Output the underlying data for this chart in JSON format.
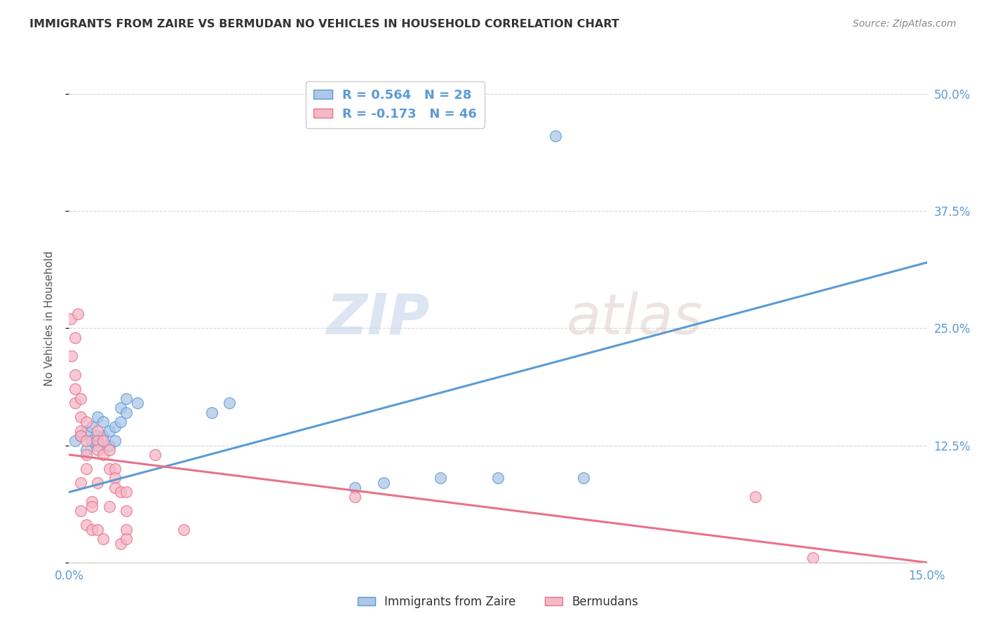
{
  "title": "IMMIGRANTS FROM ZAIRE VS BERMUDAN NO VEHICLES IN HOUSEHOLD CORRELATION CHART",
  "source": "Source: ZipAtlas.com",
  "ylabel_label": "No Vehicles in Household",
  "xmin": 0.0,
  "xmax": 0.15,
  "ymin": 0.0,
  "ymax": 0.52,
  "legend_blue_R": "R = 0.564",
  "legend_blue_N": "N = 28",
  "legend_pink_R": "R = -0.173",
  "legend_pink_N": "N = 46",
  "legend_blue_label": "Immigrants from Zaire",
  "legend_pink_label": "Bermudans",
  "blue_color": "#aec6e8",
  "pink_color": "#f5b8c8",
  "blue_line_color": "#5b9bd5",
  "pink_line_color": "#e8728a",
  "watermark_zip": "ZIP",
  "watermark_atlas": "atlas",
  "blue_scatter_x": [
    0.001,
    0.002,
    0.003,
    0.003,
    0.004,
    0.004,
    0.005,
    0.005,
    0.005,
    0.006,
    0.006,
    0.007,
    0.007,
    0.008,
    0.008,
    0.009,
    0.009,
    0.01,
    0.01,
    0.012,
    0.025,
    0.028,
    0.05,
    0.055,
    0.065,
    0.075,
    0.085,
    0.09
  ],
  "blue_scatter_y": [
    0.13,
    0.135,
    0.12,
    0.14,
    0.13,
    0.145,
    0.125,
    0.135,
    0.155,
    0.135,
    0.15,
    0.125,
    0.14,
    0.13,
    0.145,
    0.15,
    0.165,
    0.16,
    0.175,
    0.17,
    0.16,
    0.17,
    0.08,
    0.085,
    0.09,
    0.09,
    0.455,
    0.09
  ],
  "pink_scatter_x": [
    0.0003,
    0.0005,
    0.001,
    0.001,
    0.001,
    0.001,
    0.0015,
    0.002,
    0.002,
    0.002,
    0.002,
    0.002,
    0.002,
    0.003,
    0.003,
    0.003,
    0.003,
    0.003,
    0.004,
    0.004,
    0.004,
    0.005,
    0.005,
    0.005,
    0.005,
    0.005,
    0.006,
    0.006,
    0.006,
    0.007,
    0.007,
    0.007,
    0.008,
    0.008,
    0.008,
    0.009,
    0.009,
    0.01,
    0.01,
    0.01,
    0.01,
    0.015,
    0.02,
    0.05,
    0.12,
    0.13
  ],
  "pink_scatter_y": [
    0.26,
    0.22,
    0.24,
    0.2,
    0.185,
    0.17,
    0.265,
    0.175,
    0.155,
    0.14,
    0.135,
    0.085,
    0.055,
    0.15,
    0.13,
    0.115,
    0.1,
    0.04,
    0.035,
    0.065,
    0.06,
    0.14,
    0.13,
    0.12,
    0.085,
    0.035,
    0.13,
    0.115,
    0.025,
    0.12,
    0.1,
    0.06,
    0.1,
    0.09,
    0.08,
    0.075,
    0.02,
    0.075,
    0.055,
    0.035,
    0.025,
    0.115,
    0.035,
    0.07,
    0.07,
    0.005
  ],
  "blue_trend_x": [
    0.0,
    0.15
  ],
  "blue_trend_y": [
    0.075,
    0.32
  ],
  "pink_trend_x": [
    0.0,
    0.15
  ],
  "pink_trend_y": [
    0.115,
    0.0
  ],
  "background_color": "#ffffff",
  "grid_color": "#d8d8d8",
  "yticks": [
    0.0,
    0.125,
    0.25,
    0.375,
    0.5
  ],
  "ytick_labels": [
    "",
    "12.5%",
    "25.0%",
    "37.5%",
    "50.0%"
  ],
  "xticks": [
    0.0,
    0.05,
    0.1,
    0.15
  ],
  "xtick_labels": [
    "0.0%",
    "",
    "",
    "15.0%"
  ]
}
